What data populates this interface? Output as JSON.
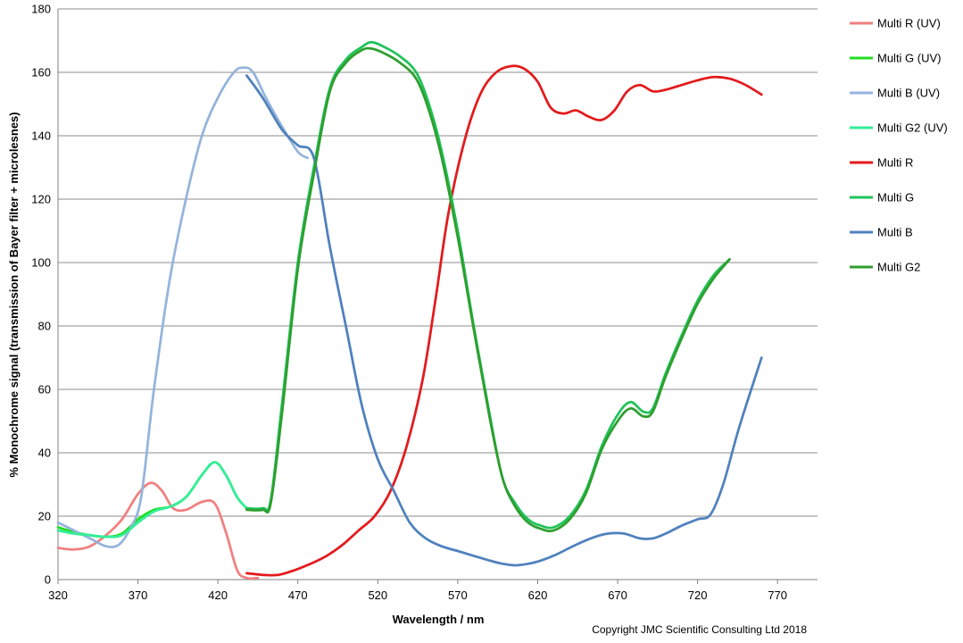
{
  "chart_data": {
    "type": "line",
    "title": "",
    "xlabel": "Wavelength / nm",
    "ylabel": "% Monochrome signal (transmission of Bayer filter + microlesnes)",
    "xlim": [
      320,
      795
    ],
    "ylim": [
      0,
      180
    ],
    "x_ticks": [
      320,
      370,
      420,
      470,
      520,
      570,
      620,
      670,
      720,
      770
    ],
    "y_ticks": [
      0,
      20,
      40,
      60,
      80,
      100,
      120,
      140,
      160,
      180
    ],
    "grid": "horizontal",
    "legend_position": "right",
    "copyright": "Copyright JMC Scientific Consulting Ltd 2018",
    "series": [
      {
        "name": "Multi R (UV)",
        "color": "#f08080",
        "points": [
          [
            320,
            10
          ],
          [
            330,
            9.5
          ],
          [
            340,
            10.5
          ],
          [
            350,
            14
          ],
          [
            360,
            19
          ],
          [
            370,
            27
          ],
          [
            378,
            30.5
          ],
          [
            385,
            28
          ],
          [
            392,
            22.5
          ],
          [
            400,
            22
          ],
          [
            410,
            24.5
          ],
          [
            418,
            24
          ],
          [
            425,
            15
          ],
          [
            432,
            3
          ],
          [
            438,
            0.5
          ],
          [
            445,
            0.5
          ]
        ]
      },
      {
        "name": "Multi G (UV)",
        "color": "#22dd22",
        "points": [
          [
            320,
            16.5
          ],
          [
            330,
            15
          ],
          [
            340,
            14
          ],
          [
            350,
            13.5
          ],
          [
            360,
            14.5
          ],
          [
            370,
            19
          ],
          [
            380,
            22
          ],
          [
            390,
            23
          ],
          [
            400,
            26
          ],
          [
            410,
            33
          ],
          [
            418,
            37
          ],
          [
            425,
            33
          ],
          [
            432,
            26
          ],
          [
            438,
            22.5
          ]
        ]
      },
      {
        "name": "Multi B (UV)",
        "color": "#94b4dc",
        "points": [
          [
            320,
            18
          ],
          [
            330,
            15.5
          ],
          [
            340,
            13
          ],
          [
            350,
            10.5
          ],
          [
            358,
            11
          ],
          [
            365,
            16
          ],
          [
            372,
            26
          ],
          [
            380,
            60
          ],
          [
            390,
            95
          ],
          [
            400,
            120
          ],
          [
            410,
            140
          ],
          [
            420,
            152
          ],
          [
            430,
            160
          ],
          [
            436,
            161.5
          ],
          [
            442,
            160
          ],
          [
            450,
            152
          ],
          [
            460,
            143
          ],
          [
            470,
            135
          ],
          [
            476,
            133
          ]
        ]
      },
      {
        "name": "Multi G2 (UV)",
        "color": "#33ee99",
        "points": [
          [
            320,
            15.5
          ],
          [
            330,
            14.5
          ],
          [
            340,
            14
          ],
          [
            350,
            13.5
          ],
          [
            360,
            14
          ],
          [
            370,
            18
          ],
          [
            380,
            21.5
          ],
          [
            390,
            23
          ],
          [
            400,
            26
          ],
          [
            410,
            33
          ],
          [
            418,
            37
          ],
          [
            425,
            33
          ],
          [
            432,
            26
          ],
          [
            438,
            22.5
          ]
        ]
      },
      {
        "name": "Multi R",
        "color": "#e31a1c",
        "points": [
          [
            438,
            2
          ],
          [
            448,
            1.5
          ],
          [
            458,
            1.5
          ],
          [
            468,
            3
          ],
          [
            478,
            5
          ],
          [
            488,
            7.5
          ],
          [
            498,
            11
          ],
          [
            508,
            15.5
          ],
          [
            518,
            20
          ],
          [
            528,
            28
          ],
          [
            538,
            42
          ],
          [
            548,
            63
          ],
          [
            556,
            88
          ],
          [
            564,
            115
          ],
          [
            574,
            138
          ],
          [
            584,
            153
          ],
          [
            594,
            160
          ],
          [
            604,
            162
          ],
          [
            612,
            161
          ],
          [
            620,
            157
          ],
          [
            628,
            149
          ],
          [
            636,
            147
          ],
          [
            644,
            148
          ],
          [
            652,
            146
          ],
          [
            660,
            145
          ],
          [
            668,
            148
          ],
          [
            676,
            154
          ],
          [
            684,
            156
          ],
          [
            692,
            154
          ],
          [
            700,
            154.5
          ],
          [
            710,
            156
          ],
          [
            720,
            157.5
          ],
          [
            730,
            158.5
          ],
          [
            740,
            158
          ],
          [
            750,
            156
          ],
          [
            760,
            153
          ]
        ]
      },
      {
        "name": "Multi G",
        "color": "#1fc35a",
        "points": [
          [
            438,
            22.5
          ],
          [
            448,
            22.5
          ],
          [
            453,
            25
          ],
          [
            460,
            55
          ],
          [
            470,
            100
          ],
          [
            480,
            130
          ],
          [
            490,
            155
          ],
          [
            500,
            164
          ],
          [
            510,
            168
          ],
          [
            516,
            169.5
          ],
          [
            524,
            168
          ],
          [
            534,
            165
          ],
          [
            544,
            160
          ],
          [
            552,
            150
          ],
          [
            560,
            135
          ],
          [
            570,
            110
          ],
          [
            580,
            80
          ],
          [
            590,
            52
          ],
          [
            598,
            32
          ],
          [
            606,
            24
          ],
          [
            614,
            19
          ],
          [
            622,
            17
          ],
          [
            630,
            16.5
          ],
          [
            640,
            20
          ],
          [
            650,
            28
          ],
          [
            660,
            42
          ],
          [
            670,
            52
          ],
          [
            678,
            56
          ],
          [
            686,
            53
          ],
          [
            692,
            54
          ],
          [
            700,
            65
          ],
          [
            710,
            77
          ],
          [
            720,
            88
          ],
          [
            730,
            96
          ],
          [
            740,
            101
          ]
        ]
      },
      {
        "name": "Multi B",
        "color": "#4f81bd",
        "points": [
          [
            438,
            159
          ],
          [
            448,
            152
          ],
          [
            460,
            142
          ],
          [
            470,
            137
          ],
          [
            480,
            133
          ],
          [
            490,
            105
          ],
          [
            500,
            80
          ],
          [
            510,
            55
          ],
          [
            520,
            38
          ],
          [
            530,
            28
          ],
          [
            540,
            18
          ],
          [
            550,
            13
          ],
          [
            560,
            10.5
          ],
          [
            570,
            9
          ],
          [
            580,
            7.5
          ],
          [
            590,
            6
          ],
          [
            598,
            5
          ],
          [
            606,
            4.5
          ],
          [
            614,
            5
          ],
          [
            622,
            6
          ],
          [
            632,
            8
          ],
          [
            644,
            11
          ],
          [
            656,
            13.5
          ],
          [
            664,
            14.5
          ],
          [
            674,
            14.5
          ],
          [
            684,
            13
          ],
          [
            692,
            13
          ],
          [
            700,
            14.5
          ],
          [
            710,
            17
          ],
          [
            720,
            19
          ],
          [
            728,
            20.5
          ],
          [
            736,
            30
          ],
          [
            746,
            48
          ],
          [
            760,
            70
          ]
        ]
      },
      {
        "name": "Multi G2",
        "color": "#2e9f2e",
        "points": [
          [
            438,
            22
          ],
          [
            448,
            22
          ],
          [
            453,
            24
          ],
          [
            460,
            52
          ],
          [
            470,
            98
          ],
          [
            480,
            128
          ],
          [
            490,
            154
          ],
          [
            500,
            163
          ],
          [
            510,
            167
          ],
          [
            516,
            167.5
          ],
          [
            524,
            166
          ],
          [
            534,
            163
          ],
          [
            544,
            158
          ],
          [
            552,
            148
          ],
          [
            560,
            133
          ],
          [
            570,
            108
          ],
          [
            580,
            79
          ],
          [
            590,
            51
          ],
          [
            598,
            32
          ],
          [
            606,
            23
          ],
          [
            614,
            18
          ],
          [
            622,
            16
          ],
          [
            630,
            15.5
          ],
          [
            640,
            19
          ],
          [
            650,
            27
          ],
          [
            660,
            41
          ],
          [
            670,
            50
          ],
          [
            678,
            54
          ],
          [
            686,
            51.5
          ],
          [
            692,
            53
          ],
          [
            700,
            64
          ],
          [
            710,
            76
          ],
          [
            720,
            87
          ],
          [
            730,
            95
          ],
          [
            740,
            101
          ]
        ]
      }
    ]
  }
}
